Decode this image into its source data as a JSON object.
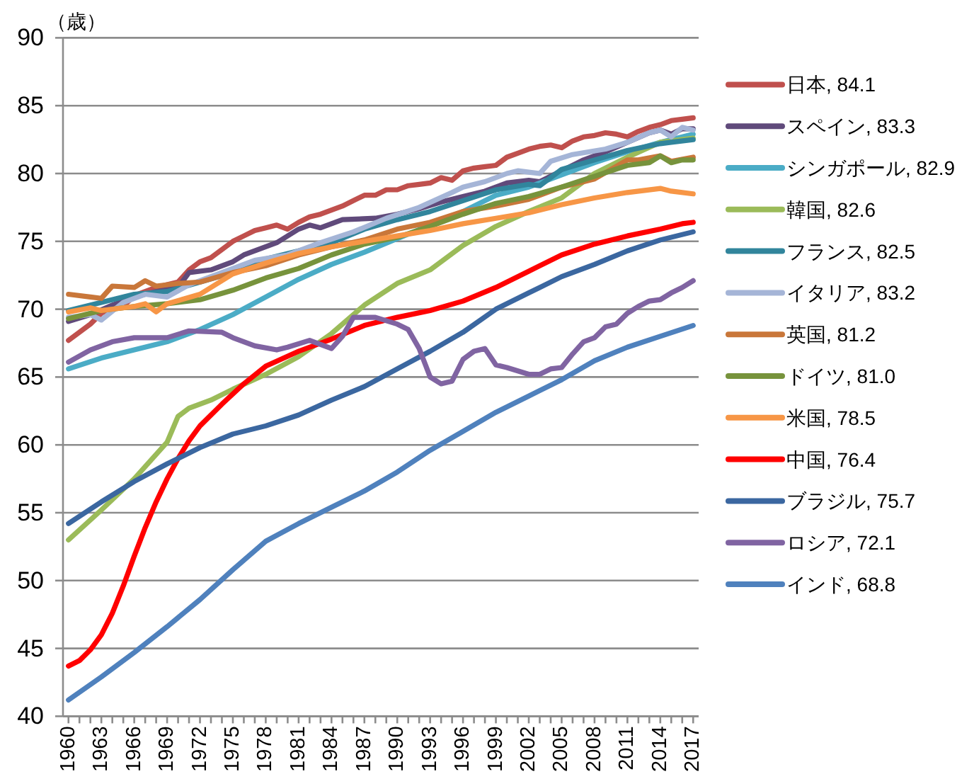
{
  "chart_data": {
    "type": "line",
    "ylabel": "（歳）",
    "xlim": [
      1959.5,
      2017.5
    ],
    "xticks": [
      1960,
      {
        "value": 1961,
        "label": null
      },
      {
        "value": 1962,
        "label": null
      },
      1963,
      {
        "value": 1964,
        "label": null
      },
      {
        "value": 1965,
        "label": null
      },
      1966,
      {
        "value": 1967,
        "label": null
      },
      {
        "value": 1968,
        "label": null
      },
      1969,
      {
        "value": 1970,
        "label": null
      },
      {
        "value": 1971,
        "label": null
      },
      1972,
      {
        "value": 1973,
        "label": null
      },
      {
        "value": 1974,
        "label": null
      },
      1975,
      {
        "value": 1976,
        "label": null
      },
      {
        "value": 1977,
        "label": null
      },
      1978,
      {
        "value": 1979,
        "label": null
      },
      {
        "value": 1980,
        "label": null
      },
      1981,
      {
        "value": 1982,
        "label": null
      },
      {
        "value": 1983,
        "label": null
      },
      1984,
      {
        "value": 1985,
        "label": null
      },
      {
        "value": 1986,
        "label": null
      },
      1987,
      {
        "value": 1988,
        "label": null
      },
      {
        "value": 1989,
        "label": null
      },
      1990,
      {
        "value": 1991,
        "label": null
      },
      {
        "value": 1992,
        "label": null
      },
      1993,
      {
        "value": 1994,
        "label": null
      },
      {
        "value": 1995,
        "label": null
      },
      1996,
      {
        "value": 1997,
        "label": null
      },
      {
        "value": 1998,
        "label": null
      },
      1999,
      {
        "value": 2000,
        "label": null
      },
      {
        "value": 2001,
        "label": null
      },
      2002,
      {
        "value": 2003,
        "label": null
      },
      {
        "value": 2004,
        "label": null
      },
      2005,
      {
        "value": 2006,
        "label": null
      },
      {
        "value": 2007,
        "label": null
      },
      2008,
      {
        "value": 2009,
        "label": null
      },
      {
        "value": 2010,
        "label": null
      },
      2011,
      {
        "value": 2012,
        "label": null
      },
      {
        "value": 2013,
        "label": null
      },
      2014,
      {
        "value": 2015,
        "label": null
      },
      {
        "value": 2016,
        "label": null
      },
      2017
    ],
    "ylim": [
      40,
      90
    ],
    "yticks": [
      40,
      45,
      50,
      55,
      60,
      65,
      70,
      75,
      80,
      85,
      90
    ],
    "grid": "y",
    "legend": "right",
    "line_style": "solid",
    "series": [
      {
        "name": "日本, 84.1",
        "color": "#c0504d",
        "x": [
          1960,
          1961,
          1962,
          1963,
          1964,
          1965,
          1966,
          1967,
          1968,
          1969,
          1970,
          1971,
          1972,
          1973,
          1974,
          1975,
          1976,
          1977,
          1978,
          1979,
          1980,
          1981,
          1982,
          1983,
          1984,
          1985,
          1986,
          1987,
          1988,
          1989,
          1990,
          1991,
          1992,
          1993,
          1994,
          1995,
          1996,
          1997,
          1998,
          1999,
          2000,
          2001,
          2002,
          2003,
          2004,
          2005,
          2006,
          2007,
          2008,
          2009,
          2010,
          2011,
          2012,
          2013,
          2014,
          2015,
          2016,
          2017
        ],
        "values": [
          67.7,
          68.3,
          68.9,
          69.7,
          70.1,
          70.2,
          71.0,
          71.3,
          71.6,
          71.8,
          72.0,
          72.9,
          73.5,
          73.8,
          74.4,
          75.0,
          75.4,
          75.8,
          76.0,
          76.2,
          75.9,
          76.4,
          76.8,
          77.0,
          77.3,
          77.6,
          78.0,
          78.4,
          78.4,
          78.8,
          78.8,
          79.1,
          79.2,
          79.3,
          79.7,
          79.5,
          80.2,
          80.4,
          80.5,
          80.6,
          81.2,
          81.5,
          81.8,
          82.0,
          82.1,
          81.9,
          82.4,
          82.7,
          82.8,
          83.0,
          82.9,
          82.7,
          83.1,
          83.4,
          83.6,
          83.9,
          84.0,
          84.1
        ]
      },
      {
        "name": "スペイン, 83.3",
        "color": "#604a7b",
        "x": [
          1960,
          1962,
          1964,
          1966,
          1968,
          1970,
          1971,
          1973,
          1975,
          1976,
          1979,
          1981,
          1982,
          1983,
          1985,
          1988,
          1990,
          1992,
          1994,
          1996,
          1998,
          2000,
          2002,
          2003,
          2005,
          2007,
          2009,
          2011,
          2013,
          2014,
          2015,
          2016,
          2017
        ],
        "values": [
          69.1,
          69.6,
          70.3,
          70.9,
          71.3,
          71.6,
          72.7,
          72.9,
          73.5,
          74.0,
          74.9,
          75.9,
          76.2,
          76.0,
          76.6,
          76.7,
          77.0,
          77.4,
          77.9,
          78.3,
          78.7,
          79.3,
          79.5,
          79.4,
          80.2,
          81.0,
          81.6,
          82.3,
          83.0,
          83.2,
          82.9,
          83.3,
          83.3
        ]
      },
      {
        "name": "シンガポール, 82.9",
        "color": "#4bacc6",
        "x": [
          1960,
          1963,
          1966,
          1969,
          1972,
          1975,
          1978,
          1981,
          1984,
          1987,
          1990,
          1993,
          1996,
          1999,
          2002,
          2005,
          2008,
          2011,
          2014,
          2017
        ],
        "values": [
          65.6,
          66.4,
          67.0,
          67.6,
          68.5,
          69.6,
          70.9,
          72.2,
          73.3,
          74.2,
          75.2,
          76.2,
          77.2,
          78.4,
          79.0,
          79.9,
          80.8,
          81.6,
          82.3,
          82.9
        ]
      },
      {
        "name": "韓国, 82.6",
        "color": "#9bbb59",
        "x": [
          1960,
          1963,
          1966,
          1969,
          1970,
          1971,
          1973,
          1975,
          1978,
          1981,
          1984,
          1987,
          1990,
          1993,
          1996,
          1999,
          2002,
          2005,
          2008,
          2011,
          2014,
          2017
        ],
        "values": [
          53.0,
          55.2,
          57.5,
          60.2,
          62.1,
          62.7,
          63.3,
          64.1,
          65.2,
          66.5,
          68.2,
          70.3,
          71.9,
          72.9,
          74.7,
          76.1,
          77.2,
          78.2,
          80.0,
          81.2,
          82.3,
          82.6
        ]
      },
      {
        "name": "フランス, 82.5",
        "color": "#31859c",
        "x": [
          1960,
          1963,
          1966,
          1969,
          1972,
          1975,
          1978,
          1981,
          1984,
          1987,
          1990,
          1993,
          1996,
          1999,
          2002,
          2003,
          2005,
          2008,
          2011,
          2014,
          2015,
          2017
        ],
        "values": [
          69.9,
          70.5,
          71.1,
          71.3,
          72.0,
          72.7,
          73.7,
          74.3,
          74.9,
          75.9,
          76.6,
          77.2,
          78.0,
          78.8,
          79.2,
          79.1,
          80.3,
          81.0,
          81.7,
          82.2,
          82.3,
          82.5
        ]
      },
      {
        "name": "イタリア, 83.2",
        "color": "#a5b5d7",
        "x": [
          1960,
          1962,
          1963,
          1965,
          1967,
          1969,
          1971,
          1974,
          1977,
          1980,
          1983,
          1986,
          1989,
          1992,
          1995,
          1996,
          1998,
          2000,
          2001,
          2002,
          2003,
          2004,
          2006,
          2009,
          2011,
          2013,
          2014,
          2015,
          2016,
          2017
        ],
        "values": [
          69.4,
          69.6,
          69.2,
          70.5,
          71.1,
          70.9,
          71.8,
          72.7,
          73.6,
          74.0,
          74.9,
          75.7,
          76.7,
          77.5,
          78.6,
          79.0,
          79.4,
          80.0,
          80.2,
          80.1,
          80.0,
          80.9,
          81.4,
          81.8,
          82.3,
          83.0,
          83.2,
          82.7,
          83.4,
          83.2
        ]
      },
      {
        "name": "英国, 81.2",
        "color": "#c9773a",
        "x": [
          1960,
          1962,
          1963,
          1964,
          1966,
          1967,
          1968,
          1970,
          1972,
          1975,
          1978,
          1981,
          1984,
          1987,
          1990,
          1993,
          1996,
          1999,
          2002,
          2005,
          2008,
          2011,
          2012,
          2014,
          2015,
          2017
        ],
        "values": [
          71.1,
          70.9,
          70.8,
          71.7,
          71.6,
          72.1,
          71.7,
          71.9,
          72.0,
          72.7,
          73.2,
          74.0,
          74.6,
          75.1,
          75.9,
          76.4,
          77.2,
          77.6,
          78.1,
          79.0,
          79.6,
          81.0,
          81.0,
          81.3,
          80.9,
          81.2
        ]
      },
      {
        "name": "ドイツ, 81.0",
        "color": "#77933c",
        "x": [
          1960,
          1963,
          1966,
          1969,
          1972,
          1975,
          1978,
          1981,
          1984,
          1987,
          1990,
          1993,
          1996,
          1999,
          2002,
          2005,
          2008,
          2011,
          2013,
          2014,
          2015,
          2016,
          2017
        ],
        "values": [
          69.3,
          69.9,
          70.2,
          70.4,
          70.7,
          71.4,
          72.3,
          73.0,
          74.0,
          74.8,
          75.3,
          76.1,
          77.0,
          77.8,
          78.3,
          79.0,
          79.8,
          80.6,
          80.8,
          81.3,
          80.8,
          81.0,
          81.0
        ]
      },
      {
        "name": "米国, 78.5",
        "color": "#f79646",
        "x": [
          1960,
          1962,
          1963,
          1966,
          1967,
          1968,
          1969,
          1972,
          1975,
          1978,
          1981,
          1984,
          1987,
          1990,
          1993,
          1996,
          1999,
          2002,
          2005,
          2008,
          2011,
          2014,
          2015,
          2017
        ],
        "values": [
          69.8,
          70.1,
          69.9,
          70.2,
          70.4,
          69.8,
          70.4,
          71.1,
          72.6,
          73.4,
          74.1,
          74.6,
          75.0,
          75.4,
          75.8,
          76.3,
          76.7,
          77.1,
          77.7,
          78.2,
          78.6,
          78.9,
          78.7,
          78.5
        ]
      },
      {
        "name": "中国, 76.4",
        "color": "#ff0000",
        "x": [
          1960,
          1961,
          1962,
          1963,
          1964,
          1965,
          1966,
          1967,
          1968,
          1969,
          1970,
          1971,
          1972,
          1974,
          1976,
          1978,
          1981,
          1984,
          1987,
          1990,
          1993,
          1996,
          1999,
          2002,
          2005,
          2008,
          2011,
          2014,
          2016,
          2017
        ],
        "values": [
          43.7,
          44.1,
          44.9,
          46.0,
          47.6,
          49.6,
          51.8,
          53.9,
          55.8,
          57.5,
          59.0,
          60.3,
          61.4,
          63.0,
          64.5,
          65.8,
          66.9,
          67.8,
          68.8,
          69.4,
          69.9,
          70.6,
          71.6,
          72.8,
          74.0,
          74.8,
          75.4,
          75.9,
          76.3,
          76.4
        ]
      },
      {
        "name": "ブラジル, 75.7",
        "color": "#3b67a0",
        "x": [
          1960,
          1963,
          1966,
          1969,
          1972,
          1975,
          1978,
          1981,
          1984,
          1987,
          1990,
          1993,
          1996,
          1999,
          2002,
          2005,
          2008,
          2011,
          2014,
          2017
        ],
        "values": [
          54.2,
          55.8,
          57.3,
          58.6,
          59.8,
          60.8,
          61.4,
          62.2,
          63.3,
          64.3,
          65.6,
          66.9,
          68.3,
          70.0,
          71.2,
          72.4,
          73.3,
          74.3,
          75.1,
          75.7
        ]
      },
      {
        "name": "ロシア, 72.1",
        "color": "#8064a2",
        "x": [
          1960,
          1962,
          1964,
          1966,
          1969,
          1971,
          1974,
          1975,
          1977,
          1979,
          1980,
          1982,
          1984,
          1985,
          1986,
          1988,
          1990,
          1991,
          1992,
          1993,
          1994,
          1995,
          1996,
          1997,
          1998,
          1999,
          2000,
          2002,
          2003,
          2004,
          2005,
          2006,
          2007,
          2008,
          2009,
          2010,
          2011,
          2012,
          2013,
          2014,
          2015,
          2016,
          2017
        ],
        "values": [
          66.1,
          67.0,
          67.6,
          67.9,
          67.9,
          68.4,
          68.3,
          67.9,
          67.3,
          67.0,
          67.2,
          67.7,
          67.1,
          68.0,
          69.4,
          69.4,
          68.9,
          68.5,
          67.1,
          65.0,
          64.5,
          64.7,
          66.3,
          66.9,
          67.1,
          65.9,
          65.7,
          65.2,
          65.2,
          65.6,
          65.7,
          66.7,
          67.6,
          67.9,
          68.7,
          68.9,
          69.7,
          70.2,
          70.6,
          70.7,
          71.2,
          71.6,
          72.1
        ]
      },
      {
        "name": "インド, 68.8",
        "color": "#4f81bd",
        "x": [
          1960,
          1963,
          1966,
          1969,
          1972,
          1975,
          1978,
          1981,
          1984,
          1987,
          1990,
          1993,
          1996,
          1999,
          2002,
          2005,
          2008,
          2011,
          2014,
          2017
        ],
        "values": [
          41.2,
          42.9,
          44.7,
          46.6,
          48.6,
          50.8,
          52.9,
          54.2,
          55.4,
          56.6,
          58.0,
          59.6,
          61.0,
          62.4,
          63.6,
          64.8,
          66.2,
          67.2,
          68.0,
          68.8
        ]
      }
    ]
  }
}
